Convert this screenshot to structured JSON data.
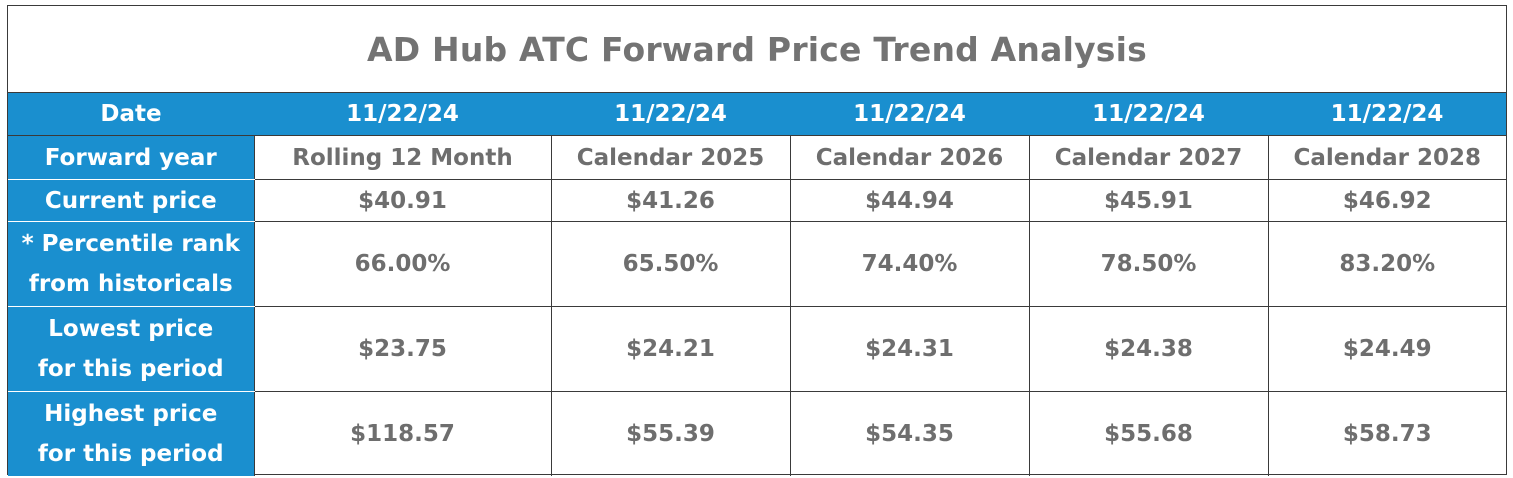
{
  "chart_data": {
    "type": "table",
    "title": "AD Hub ATC Forward Price Trend Analysis",
    "header": {
      "label": "Date",
      "values": [
        "11/22/24",
        "11/22/24",
        "11/22/24",
        "11/22/24",
        "11/22/24"
      ]
    },
    "rows": [
      {
        "label_lines": [
          "Forward year"
        ],
        "values": [
          "Rolling 12 Month",
          "Calendar 2025",
          "Calendar 2026",
          "Calendar 2027",
          "Calendar 2028"
        ]
      },
      {
        "label_lines": [
          "Current price"
        ],
        "values": [
          "$40.91",
          "$41.26",
          "$44.94",
          "$45.91",
          "$46.92"
        ]
      },
      {
        "label_lines": [
          "* Percentile rank",
          "from historicals"
        ],
        "values": [
          "66.00%",
          "65.50%",
          "74.40%",
          "78.50%",
          "83.20%"
        ]
      },
      {
        "label_lines": [
          "Lowest price",
          "for this period"
        ],
        "values": [
          "$23.75",
          "$24.21",
          "$24.31",
          "$24.38",
          "$24.49"
        ]
      },
      {
        "label_lines": [
          "Highest price",
          "for this period"
        ],
        "values": [
          "$118.57",
          "$55.39",
          "$54.35",
          "$55.68",
          "$58.73"
        ]
      }
    ]
  }
}
